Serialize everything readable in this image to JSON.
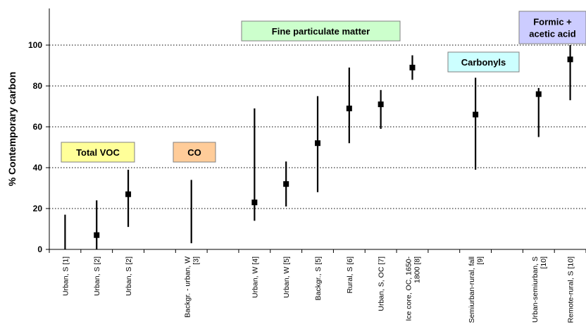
{
  "chart_data": {
    "type": "scatter",
    "ylabel": "% Contemporary carbon",
    "ylim": [
      0,
      100
    ],
    "yticks": [
      0,
      20,
      40,
      60,
      80,
      100
    ],
    "grid": "horizontal-dotted",
    "series": [
      {
        "points": [
          {
            "label": [
              "Urban, S [1]"
            ],
            "ymin": 0,
            "ymax": 17,
            "value": null
          },
          {
            "label": [
              "Urban, S [2]"
            ],
            "ymin": 0,
            "ymax": 24,
            "value": 7
          },
          {
            "label": [
              "Urban, S [2]"
            ],
            "ymin": 11,
            "ymax": 39,
            "value": 27
          },
          {
            "label": [
              "Backgr. - urban, W",
              "[3]"
            ],
            "ymin": 3,
            "ymax": 34,
            "value": null
          },
          {
            "label": [
              "Urban, W [4]"
            ],
            "ymin": 14,
            "ymax": 69,
            "value": 23
          },
          {
            "label": [
              "Urban, W [5]"
            ],
            "ymin": 21,
            "ymax": 43,
            "value": 32
          },
          {
            "label": [
              "Backgr., S [5]"
            ],
            "ymin": 28,
            "ymax": 75,
            "value": 52
          },
          {
            "label": [
              "Rural, S [6]"
            ],
            "ymin": 52,
            "ymax": 89,
            "value": 69
          },
          {
            "label": [
              "Urban, S, OC [7]"
            ],
            "ymin": 59,
            "ymax": 78,
            "value": 71
          },
          {
            "label": [
              "Ice core, OC, 1650-",
              "1800 [8]"
            ],
            "ymin": 83,
            "ymax": 95,
            "value": 89
          },
          {
            "label": [
              "Semiurban-rural, fall",
              "[9]"
            ],
            "ymin": 39,
            "ymax": 84,
            "value": 66
          },
          {
            "label": [
              "Urban-semiurban, S",
              "[10]"
            ],
            "ymin": 55,
            "ymax": 79,
            "value": 76
          },
          {
            "label": [
              "Remote-rural, S [10]"
            ],
            "ymin": 73,
            "ymax": 100,
            "value": 93
          }
        ]
      }
    ],
    "annotations": [
      {
        "lines": [
          "Total VOC"
        ],
        "color": "#ffff99"
      },
      {
        "lines": [
          "CO"
        ],
        "color": "#ffcc99"
      },
      {
        "lines": [
          "Fine particulate matter"
        ],
        "color": "#ccffcc"
      },
      {
        "lines": [
          "Carbonyls"
        ],
        "color": "#ccffff"
      },
      {
        "lines": [
          "Formic +",
          "acetic acid"
        ],
        "color": "#ccccff"
      }
    ]
  }
}
